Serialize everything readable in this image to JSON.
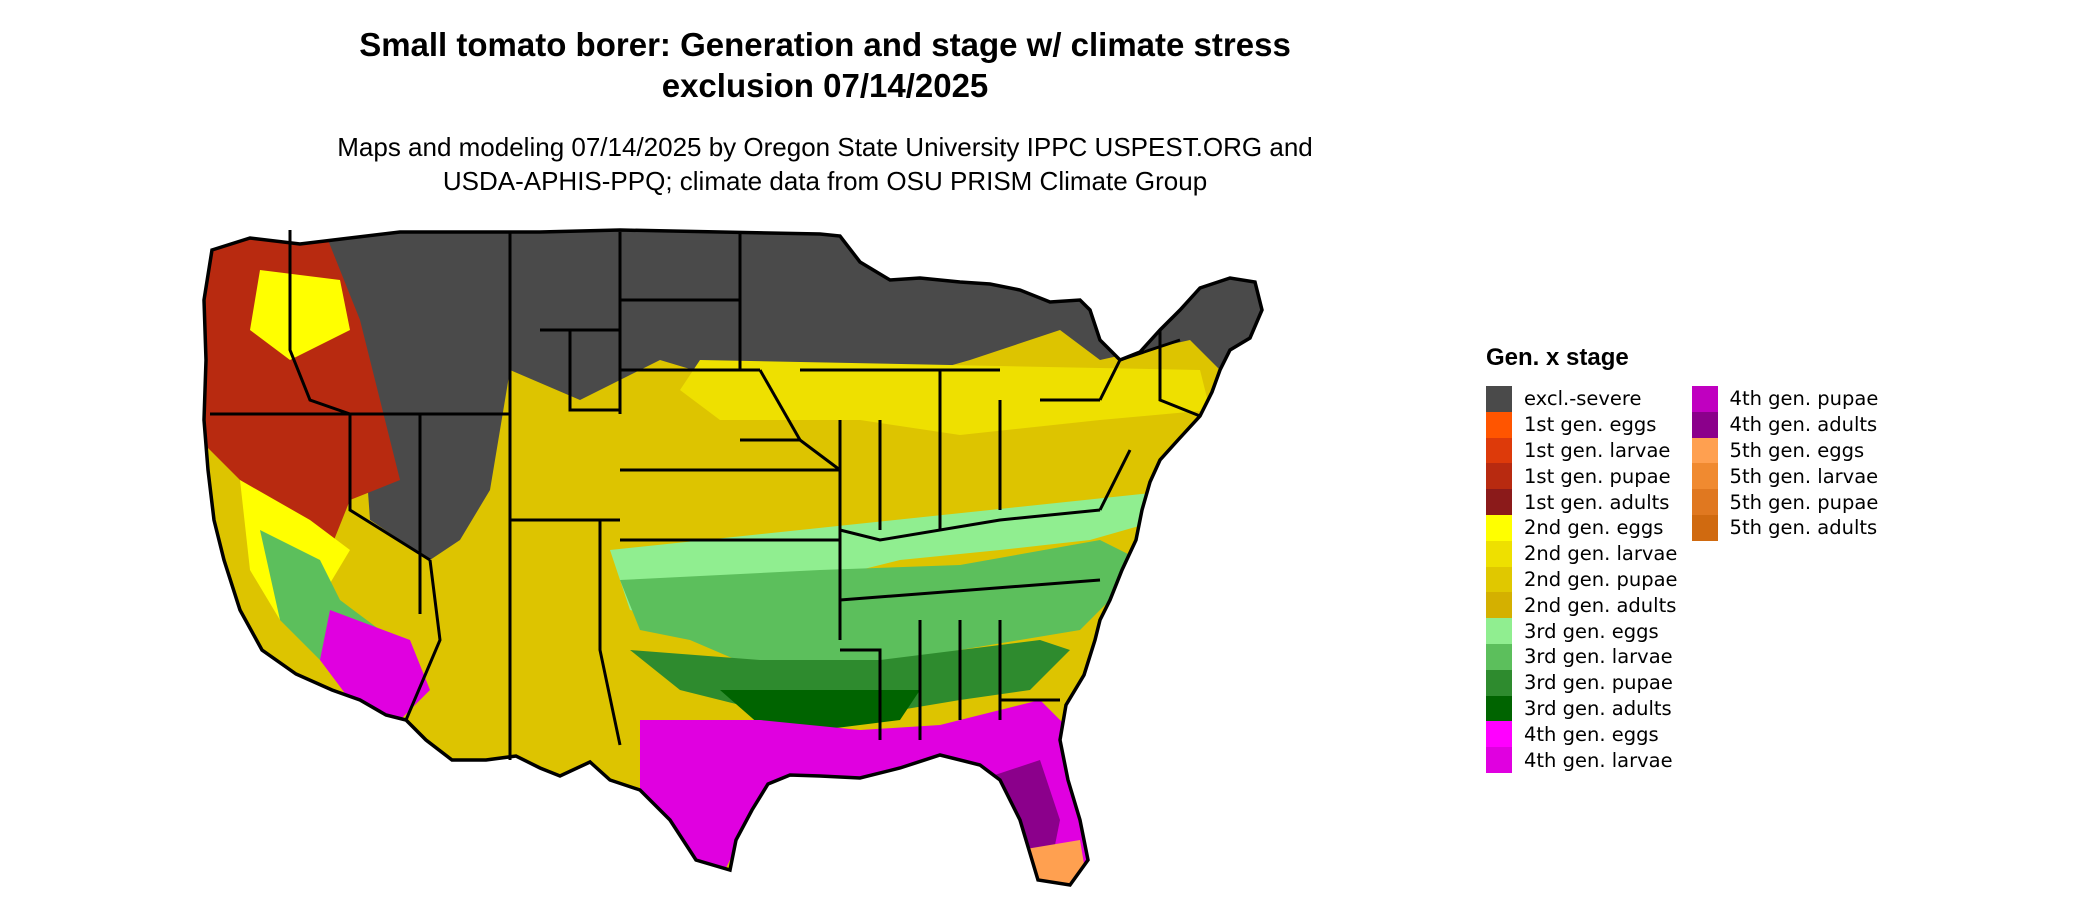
{
  "title": {
    "line1": "Small tomato borer: Generation and stage w/ climate stress",
    "line2": "exclusion 07/14/2025"
  },
  "subtitle": {
    "line1": "Maps and modeling 07/14/2025 by Oregon State University IPPC USPEST.ORG and",
    "line2": "USDA-APHIS-PPQ; climate data from OSU PRISM Climate Group"
  },
  "legend": {
    "title": "Gen. x stage",
    "columns": [
      [
        {
          "label": "excl.-severe",
          "color": "#4a4a4a"
        },
        {
          "label": "1st gen. eggs",
          "color": "#ff5500"
        },
        {
          "label": "1st gen. larvae",
          "color": "#dd3a0a"
        },
        {
          "label": "1st gen. pupae",
          "color": "#b82a10"
        },
        {
          "label": "1st gen. adults",
          "color": "#8b1a1a"
        },
        {
          "label": "2nd gen. eggs",
          "color": "#ffff00"
        },
        {
          "label": "2nd gen. larvae",
          "color": "#eee000"
        },
        {
          "label": "2nd gen. pupae",
          "color": "#e0c800"
        },
        {
          "label": "2nd gen. adults",
          "color": "#d4b000"
        },
        {
          "label": "3rd gen. eggs",
          "color": "#90ee90"
        },
        {
          "label": "3rd gen. larvae",
          "color": "#5cbf5c"
        },
        {
          "label": "3rd gen. pupae",
          "color": "#2e8b2e"
        },
        {
          "label": "3rd gen. adults",
          "color": "#006400"
        },
        {
          "label": "4th gen. eggs",
          "color": "#ff00ff"
        },
        {
          "label": "4th gen. larvae",
          "color": "#e000e0"
        }
      ],
      [
        {
          "label": "4th gen. pupae",
          "color": "#c000c0"
        },
        {
          "label": "4th gen. adults",
          "color": "#8b008b"
        },
        {
          "label": "5th gen. eggs",
          "color": "#ffa050"
        },
        {
          "label": "5th gen. larvae",
          "color": "#f08a30"
        },
        {
          "label": "5th gen. pupae",
          "color": "#e07820"
        },
        {
          "label": "5th gen. adults",
          "color": "#d06a10"
        }
      ]
    ]
  }
}
